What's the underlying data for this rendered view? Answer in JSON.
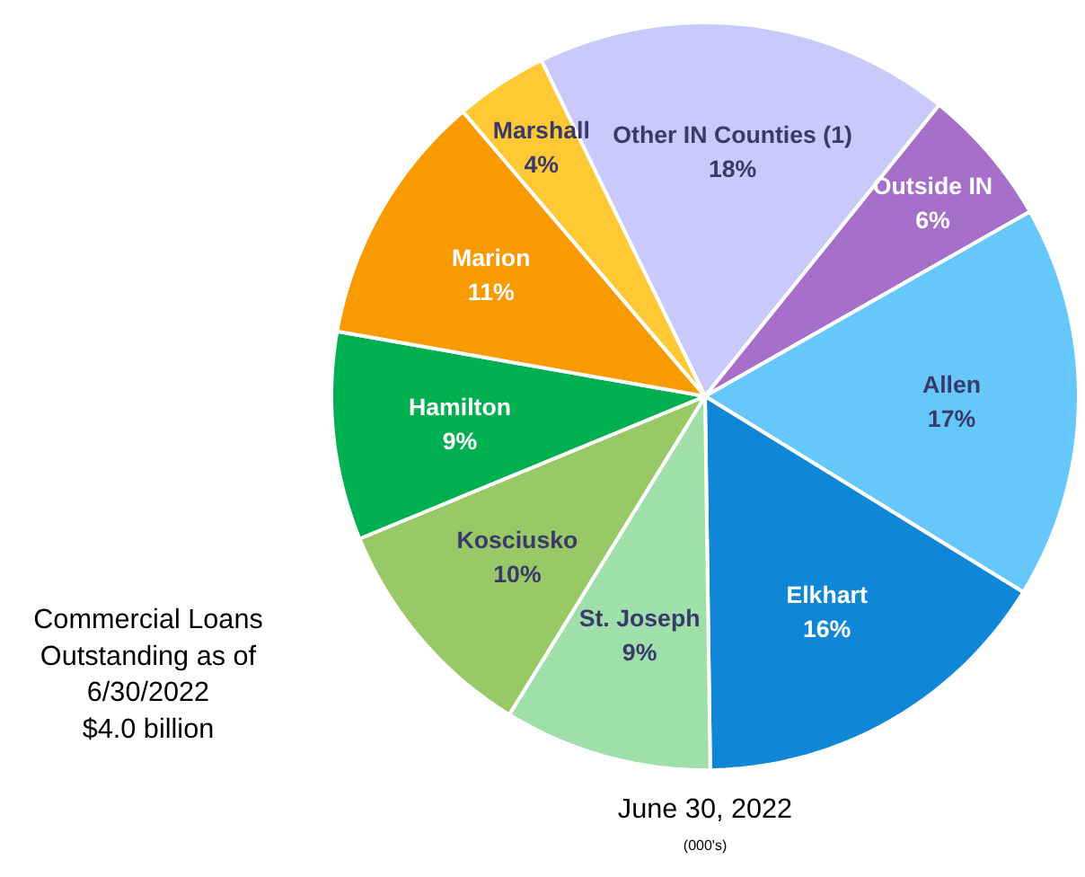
{
  "chart_data": {
    "type": "pie",
    "title": "June 30, 2022",
    "subtitle": "(000's)",
    "categories": [
      "Other IN Counties (1)",
      "Outside IN",
      "Allen",
      "Elkhart",
      "St. Joseph",
      "Kosciusko",
      "Hamilton",
      "Marion",
      "Marshall"
    ],
    "values": [
      18,
      6,
      17,
      16,
      9,
      10,
      9,
      11,
      4
    ],
    "value_labels": [
      "18%",
      "6%",
      "17%",
      "16%",
      "9%",
      "10%",
      "9%",
      "11%",
      "4%"
    ],
    "colors": [
      "#c9c9fb",
      "#a66fc9",
      "#66c7fb",
      "#0f86d6",
      "#9fdfa9",
      "#99c966",
      "#00b050",
      "#f99a00",
      "#ffc935"
    ],
    "annotations": [
      "Commercial Loans\nOutstanding as of\n6/30/2022\n$4.0 billion"
    ]
  }
}
